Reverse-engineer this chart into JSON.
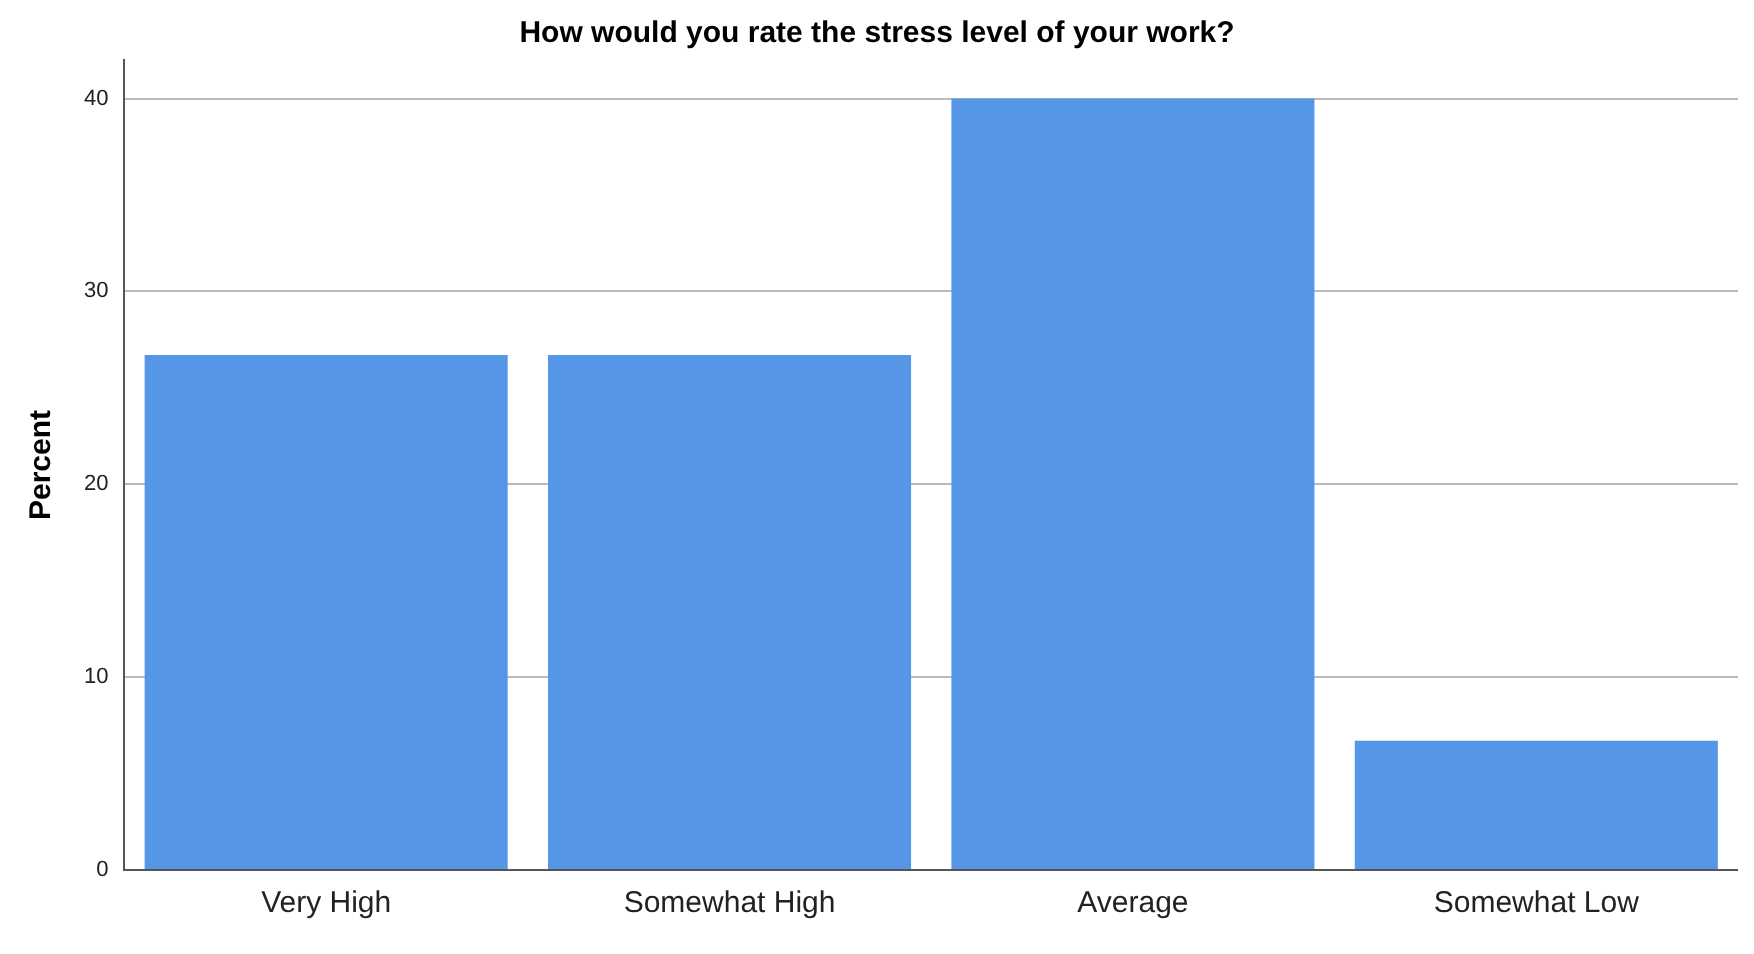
{
  "chart_data": {
    "type": "bar",
    "title": "How would you rate the stress level of your work?",
    "ylabel": "Percent",
    "categories": [
      "Very High",
      "Somewhat High",
      "Average",
      "Somewhat Low"
    ],
    "values": [
      26.7,
      26.7,
      40,
      6.7
    ],
    "color": "#5596e6",
    "ylim": [
      0,
      42
    ],
    "yticks": [
      0,
      10,
      20,
      30,
      40
    ],
    "grid": "y",
    "legend": false
  }
}
